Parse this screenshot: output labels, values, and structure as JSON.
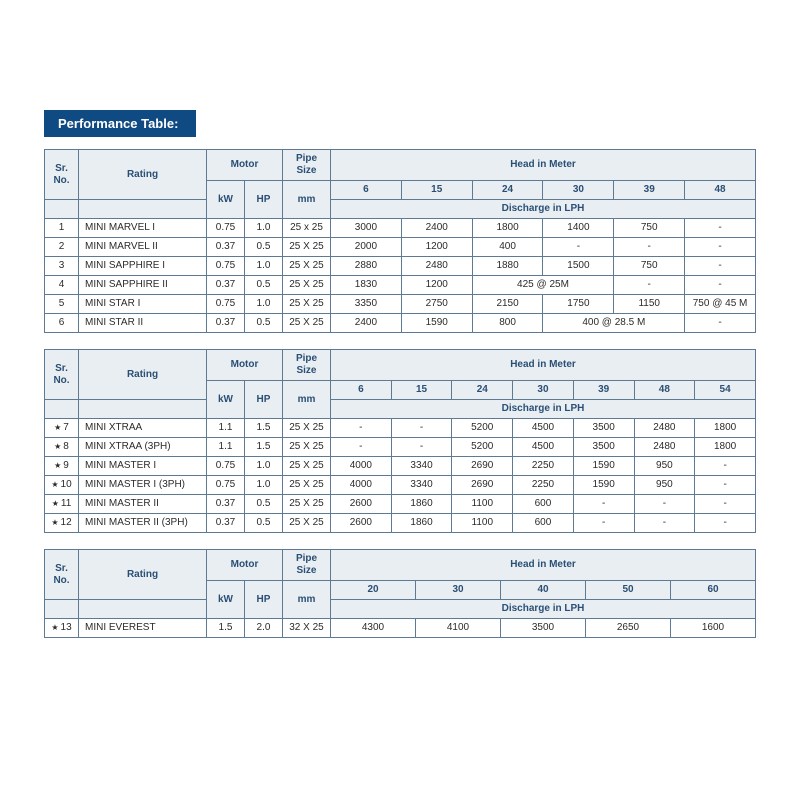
{
  "title": "Performance Table:",
  "colors": {
    "title_bg": "#104a82",
    "title_fg": "#ffffff",
    "header_bg": "#e9eef3",
    "header_fg": "#2a4f74",
    "border": "#5e7a92",
    "text": "#2b2b2b"
  },
  "headers": {
    "sr": "Sr. No.",
    "rating": "Rating",
    "motor": "Motor",
    "kw": "kW",
    "hp": "HP",
    "pipe1": "Pipe Size",
    "pipe2": "mm",
    "head": "Head in Meter",
    "discharge": "Discharge in LPH"
  },
  "table1": {
    "heads": [
      "6",
      "15",
      "24",
      "30",
      "39",
      "48"
    ],
    "rows": [
      {
        "sr": "1",
        "rating": "MINI MARVEL I",
        "kw": "0.75",
        "hp": "1.0",
        "pipe": "25 x 25",
        "v": [
          "3000",
          "2400",
          "1800",
          "1400",
          "750",
          "-"
        ]
      },
      {
        "sr": "2",
        "rating": "MINI MARVEL II",
        "kw": "0.37",
        "hp": "0.5",
        "pipe": "25 X 25",
        "v": [
          "2000",
          "1200",
          "400",
          "-",
          "-",
          "-"
        ]
      },
      {
        "sr": "3",
        "rating": "MINI SAPPHIRE I",
        "kw": "0.75",
        "hp": "1.0",
        "pipe": "25 X 25",
        "v": [
          "2880",
          "2480",
          "1880",
          "1500",
          "750",
          "-"
        ]
      },
      {
        "sr": "4",
        "rating": "MINI SAPPHIRE II",
        "kw": "0.37",
        "hp": "0.5",
        "pipe": "25 X 25",
        "v": [
          "1830",
          "1200",
          {
            "span": 2,
            "text": "425 @ 25M"
          },
          "-",
          "-"
        ]
      },
      {
        "sr": "5",
        "rating": "MINI STAR I",
        "kw": "0.75",
        "hp": "1.0",
        "pipe": "25 X 25",
        "v": [
          "3350",
          "2750",
          "2150",
          "1750",
          "1150",
          "750 @ 45 M"
        ]
      },
      {
        "sr": "6",
        "rating": "MINI STAR II",
        "kw": "0.37",
        "hp": "0.5",
        "pipe": "25 X 25",
        "v": [
          "2400",
          "1590",
          "800",
          {
            "span": 2,
            "text": "400 @ 28.5 M"
          },
          "-"
        ]
      }
    ]
  },
  "table2": {
    "heads": [
      "6",
      "15",
      "24",
      "30",
      "39",
      "48",
      "54"
    ],
    "rows": [
      {
        "sr": "7",
        "rating": "MINI XTRAA",
        "kw": "1.1",
        "hp": "1.5",
        "pipe": "25 X 25",
        "v": [
          "-",
          "-",
          "5200",
          "4500",
          "3500",
          "2480",
          "1800"
        ]
      },
      {
        "sr": "8",
        "rating": "MINI XTRAA (3PH)",
        "kw": "1.1",
        "hp": "1.5",
        "pipe": "25 X 25",
        "v": [
          "-",
          "-",
          "5200",
          "4500",
          "3500",
          "2480",
          "1800"
        ]
      },
      {
        "sr": "9",
        "rating": "MINI MASTER I",
        "kw": "0.75",
        "hp": "1.0",
        "pipe": "25 X 25",
        "v": [
          "4000",
          "3340",
          "2690",
          "2250",
          "1590",
          "950",
          "-"
        ]
      },
      {
        "sr": "10",
        "rating": "MINI MASTER I (3PH)",
        "kw": "0.75",
        "hp": "1.0",
        "pipe": "25 X 25",
        "v": [
          "4000",
          "3340",
          "2690",
          "2250",
          "1590",
          "950",
          "-"
        ]
      },
      {
        "sr": "11",
        "rating": "MINI MASTER II",
        "kw": "0.37",
        "hp": "0.5",
        "pipe": "25 X 25",
        "v": [
          "2600",
          "1860",
          "1100",
          "600",
          "-",
          "-",
          "-"
        ]
      },
      {
        "sr": "12",
        "rating": "MINI MASTER II (3PH)",
        "kw": "0.37",
        "hp": "0.5",
        "pipe": "25 X 25",
        "v": [
          "2600",
          "1860",
          "1100",
          "600",
          "-",
          "-",
          "-"
        ]
      }
    ]
  },
  "table3": {
    "heads": [
      "20",
      "30",
      "40",
      "50",
      "60"
    ],
    "rows": [
      {
        "sr": "13",
        "rating": "MINI EVEREST",
        "kw": "1.5",
        "hp": "2.0",
        "pipe": "32 X 25",
        "v": [
          "4300",
          "4100",
          "3500",
          "2650",
          "1600"
        ]
      }
    ]
  }
}
